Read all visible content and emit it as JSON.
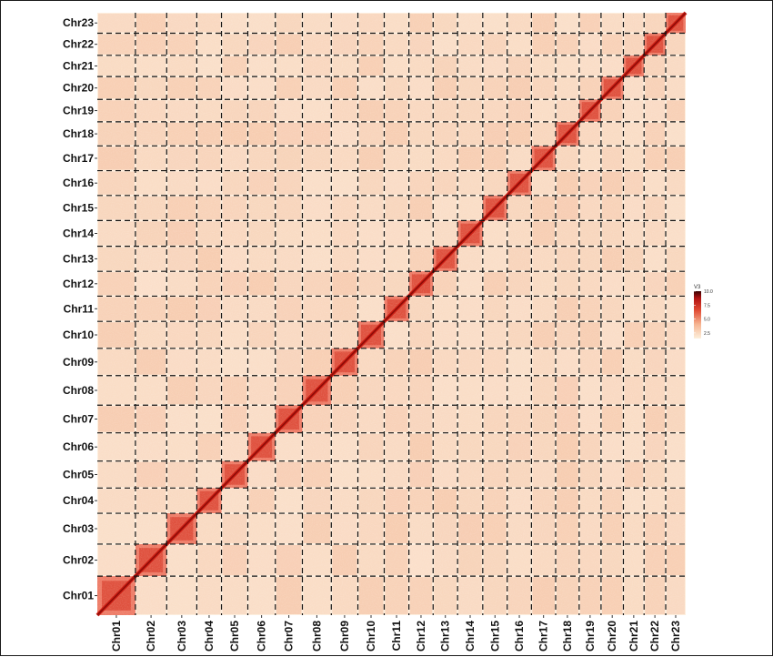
{
  "chart_data": {
    "type": "heatmap",
    "title": "",
    "xlabel": "",
    "ylabel": "",
    "chromosomes": [
      "Chr01",
      "Chr02",
      "Chr03",
      "Chr04",
      "Chr05",
      "Chr06",
      "Chr07",
      "Chr08",
      "Chr09",
      "Chr10",
      "Chr11",
      "Chr12",
      "Chr13",
      "Chr14",
      "Chr15",
      "Chr16",
      "Chr17",
      "Chr18",
      "Chr19",
      "Chr20",
      "Chr21",
      "Chr22",
      "Chr23"
    ],
    "chromosome_relative_sizes": [
      1.62,
      1.33,
      1.28,
      1.05,
      1.12,
      1.17,
      1.15,
      1.23,
      1.13,
      1.12,
      1.05,
      1.03,
      1.04,
      1.07,
      1.04,
      1.03,
      1.03,
      1.0,
      0.93,
      0.95,
      0.88,
      0.92,
      0.85
    ],
    "x_axis_labels_orientation": "vertical",
    "y_axis_position": "left",
    "grid": "dashed chromosome boundaries",
    "legend": {
      "title": "V3",
      "position": "right",
      "ticks": [
        "10.0",
        "7.5",
        "5.0",
        "2.5"
      ],
      "range": [
        1.5,
        10.0
      ],
      "colors": [
        "#fdf0dc",
        "#f6b592",
        "#e04a33",
        "#b21212",
        "#3a0202"
      ]
    },
    "colors": {
      "background": "#fdeedd",
      "off_diagonal": "#f5c4a6",
      "diagonal": "#cc1e14",
      "dashed_lines": "#111111"
    }
  }
}
